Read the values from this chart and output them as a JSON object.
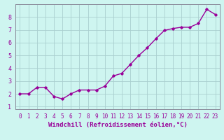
{
  "x": [
    0,
    1,
    2,
    3,
    4,
    5,
    6,
    7,
    8,
    9,
    10,
    11,
    12,
    13,
    14,
    15,
    16,
    17,
    18,
    19,
    20,
    21,
    22,
    23
  ],
  "y": [
    2.0,
    2.0,
    2.5,
    2.5,
    1.8,
    1.6,
    2.0,
    2.3,
    2.3,
    2.3,
    2.6,
    3.4,
    3.6,
    4.3,
    5.0,
    5.6,
    6.3,
    6.95,
    7.1,
    7.2,
    7.2,
    7.5,
    8.6,
    8.2
  ],
  "line_color": "#990099",
  "marker": "D",
  "marker_size": 1.8,
  "bg_color": "#cef5f0",
  "grid_color": "#aacfcf",
  "xlabel": "Windchill (Refroidissement éolien,°C)",
  "xlabel_color": "#990099",
  "xlabel_fontsize": 6.5,
  "ylabel_ticks": [
    1,
    2,
    3,
    4,
    5,
    6,
    7,
    8
  ],
  "xtick_labels": [
    "0",
    "1",
    "2",
    "3",
    "4",
    "5",
    "6",
    "7",
    "8",
    "9",
    "10",
    "11",
    "12",
    "13",
    "14",
    "15",
    "16",
    "17",
    "18",
    "19",
    "20",
    "21",
    "22",
    "23"
  ],
  "ylim": [
    0.8,
    9.0
  ],
  "xlim": [
    -0.5,
    23.5
  ],
  "tick_color": "#990099",
  "ytick_fontsize": 6.0,
  "xtick_fontsize": 5.5,
  "line_width": 1.0,
  "spine_color": "#888899"
}
